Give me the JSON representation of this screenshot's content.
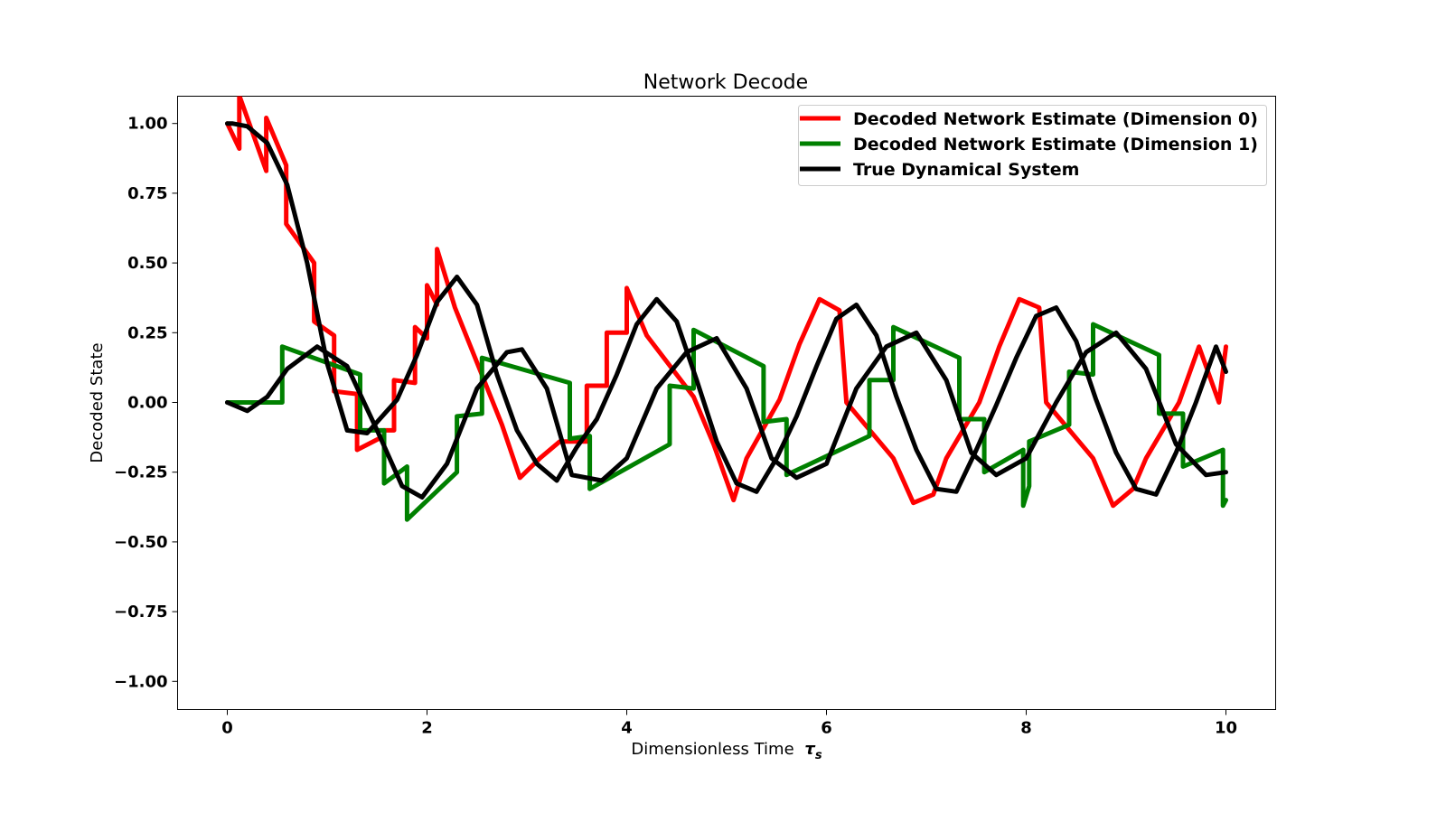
{
  "chart_data": {
    "type": "line",
    "title": "Network Decode",
    "xlabel": "Dimensionless Time",
    "xlabel_symbol": "τ",
    "xlabel_subscript": "s",
    "ylabel": "Decoded State",
    "xlim": [
      -0.5,
      10.5
    ],
    "ylim": [
      -1.1,
      1.1
    ],
    "x_ticks": [
      0,
      2,
      4,
      6,
      8,
      10
    ],
    "x_tick_labels": [
      "0",
      "2",
      "4",
      "6",
      "8",
      "10"
    ],
    "y_ticks": [
      1.0,
      0.75,
      0.5,
      0.25,
      0.0,
      -0.25,
      -0.5,
      -0.75,
      -1.0
    ],
    "y_tick_labels": [
      "1.00",
      "0.75",
      "0.50",
      "0.25",
      "0.00",
      "−0.25",
      "−0.50",
      "−0.75",
      "−1.00"
    ],
    "grid": false,
    "legend_position": "top-right",
    "series": [
      {
        "name": "Decoded Network Estimate (Dimension 0)",
        "color": "#ff0000",
        "x": [
          0,
          0.12,
          0.12,
          0.39,
          0.39,
          0.59,
          0.59,
          0.87,
          0.87,
          1.07,
          1.07,
          1.3,
          1.3,
          1.57,
          1.57,
          1.67,
          1.67,
          1.88,
          1.88,
          2.0,
          2.0,
          2.1,
          2.1,
          2.28,
          2.28,
          2.75,
          2.75,
          2.93,
          2.93,
          3.13,
          3.13,
          3.33,
          3.33,
          3.6,
          3.6,
          3.8,
          3.8,
          4.0,
          4.0,
          4.2,
          4.2,
          4.67,
          4.67,
          4.87,
          4.87,
          5.07,
          5.07,
          5.2,
          5.2,
          5.53,
          5.53,
          5.73,
          5.73,
          5.93,
          5.93,
          6.13,
          6.13,
          6.2,
          6.2,
          6.67,
          6.67,
          6.87,
          6.87,
          7.07,
          7.07,
          7.2,
          7.2,
          7.53,
          7.53,
          7.73,
          7.73,
          7.93,
          7.93,
          8.13,
          8.13,
          8.2,
          8.2,
          8.67,
          8.67,
          8.87,
          8.87,
          9.07,
          9.07,
          9.2,
          9.2,
          9.53,
          9.53,
          9.73,
          9.73,
          9.93,
          9.93,
          10.0
        ],
        "values": [
          1.0,
          0.91,
          1.1,
          0.83,
          1.02,
          0.85,
          0.64,
          0.5,
          0.29,
          0.24,
          0.04,
          0.03,
          -0.17,
          -0.12,
          -0.1,
          -0.1,
          0.08,
          0.07,
          0.27,
          0.23,
          0.42,
          0.35,
          0.55,
          0.34,
          0.34,
          -0.08,
          -0.08,
          -0.27,
          -0.27,
          -0.2,
          -0.2,
          -0.14,
          -0.14,
          -0.14,
          0.06,
          0.06,
          0.25,
          0.25,
          0.41,
          0.24,
          0.24,
          0.02,
          0.02,
          -0.15,
          -0.15,
          -0.35,
          -0.35,
          -0.2,
          -0.2,
          0.01,
          0.01,
          0.21,
          0.21,
          0.37,
          0.37,
          0.33,
          0.33,
          0.0,
          0.0,
          -0.2,
          -0.2,
          -0.36,
          -0.36,
          -0.33,
          -0.33,
          -0.2,
          -0.2,
          0.0,
          0.0,
          0.2,
          0.2,
          0.37,
          0.37,
          0.34,
          0.34,
          0.0,
          0.0,
          -0.2,
          -0.2,
          -0.37,
          -0.37,
          -0.31,
          -0.31,
          -0.2,
          -0.2,
          0.0,
          0.0,
          0.2,
          0.2,
          0.0,
          0.0,
          0.2
        ]
      },
      {
        "name": "Decoded Network Estimate (Dimension 1)",
        "color": "#008000",
        "x": [
          0,
          0.55,
          0.55,
          1.33,
          1.33,
          1.57,
          1.57,
          1.8,
          1.8,
          2.3,
          2.3,
          2.55,
          2.55,
          3.43,
          3.43,
          3.63,
          3.63,
          4.43,
          4.43,
          4.67,
          4.67,
          5.37,
          5.37,
          5.6,
          5.6,
          6.43,
          6.43,
          6.67,
          6.67,
          7.33,
          7.33,
          7.58,
          7.58,
          7.97,
          7.97,
          8.03,
          8.03,
          8.43,
          8.43,
          8.67,
          8.67,
          9.33,
          9.33,
          9.57,
          9.57,
          9.97,
          9.97,
          10.0
        ],
        "values": [
          0.0,
          0.0,
          0.2,
          0.1,
          -0.1,
          -0.1,
          -0.29,
          -0.23,
          -0.42,
          -0.25,
          -0.05,
          -0.04,
          0.16,
          0.07,
          -0.13,
          -0.12,
          -0.31,
          -0.15,
          0.06,
          0.05,
          0.26,
          0.13,
          -0.07,
          -0.06,
          -0.26,
          -0.12,
          0.08,
          0.08,
          0.27,
          0.16,
          -0.06,
          -0.06,
          -0.25,
          -0.17,
          -0.37,
          -0.3,
          -0.14,
          -0.08,
          0.11,
          0.1,
          0.28,
          0.17,
          -0.04,
          -0.04,
          -0.23,
          -0.17,
          -0.37,
          -0.35
        ]
      },
      {
        "name": "True Dynamical System",
        "color": "#000000",
        "x": [
          0,
          0.05,
          0.2,
          0.4,
          0.6,
          0.8,
          1.0,
          1.2,
          1.4,
          1.6,
          1.7,
          1.9,
          2.1,
          2.3,
          2.5,
          2.7,
          2.9,
          3.1,
          3.3,
          3.5,
          3.7,
          3.9,
          4.1,
          4.3,
          4.5,
          4.7,
          4.9,
          5.1,
          5.3,
          5.5,
          5.7,
          5.9,
          6.1,
          6.3,
          6.5,
          6.7,
          6.9,
          7.1,
          7.3,
          7.5,
          7.7,
          7.9,
          8.1,
          8.3,
          8.5,
          8.7,
          8.9,
          9.1,
          9.3,
          9.5,
          9.7,
          9.9,
          10.0
        ],
        "values": [
          1.0,
          1.0,
          0.99,
          0.93,
          0.78,
          0.5,
          0.14,
          -0.1,
          -0.11,
          -0.03,
          0.01,
          0.17,
          0.36,
          0.45,
          0.35,
          0.1,
          -0.1,
          -0.22,
          -0.28,
          -0.16,
          -0.06,
          0.1,
          0.28,
          0.37,
          0.29,
          0.08,
          -0.14,
          -0.29,
          -0.32,
          -0.2,
          -0.05,
          0.13,
          0.3,
          0.35,
          0.24,
          0.02,
          -0.17,
          -0.31,
          -0.32,
          -0.17,
          -0.01,
          0.16,
          0.31,
          0.34,
          0.22,
          0.01,
          -0.18,
          -0.31,
          -0.33,
          -0.18,
          0.0,
          0.2,
          0.11
        ]
      }
    ],
    "series_dim1_extra": [],
    "true2": {
      "name": "",
      "color": "#000000",
      "x": [
        0,
        0.2,
        0.4,
        0.6,
        0.9,
        1.2,
        1.5,
        1.75,
        1.95,
        2.2,
        2.5,
        2.8,
        2.95,
        3.2,
        3.45,
        3.75,
        4.0,
        4.3,
        4.6,
        4.9,
        5.2,
        5.45,
        5.7,
        6.0,
        6.3,
        6.6,
        6.9,
        7.2,
        7.45,
        7.7,
        8.0,
        8.3,
        8.6,
        8.9,
        9.2,
        9.5,
        9.8,
        10.0
      ],
      "values": [
        0.0,
        -0.03,
        0.02,
        0.12,
        0.2,
        0.13,
        -0.1,
        -0.3,
        -0.34,
        -0.22,
        0.05,
        0.18,
        0.19,
        0.05,
        -0.26,
        -0.28,
        -0.2,
        0.05,
        0.18,
        0.23,
        0.05,
        -0.2,
        -0.27,
        -0.22,
        0.05,
        0.2,
        0.25,
        0.08,
        -0.18,
        -0.26,
        -0.2,
        0.0,
        0.18,
        0.25,
        0.12,
        -0.15,
        -0.26,
        -0.25
      ]
    }
  }
}
